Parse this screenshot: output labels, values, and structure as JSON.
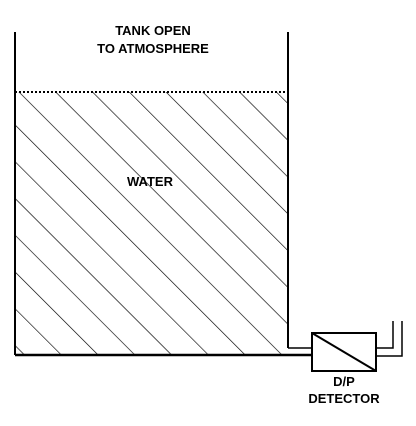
{
  "diagram": {
    "tank_label_line1": "TANK OPEN",
    "tank_label_line2": "TO ATMOSPHERE",
    "fluid_label": "WATER",
    "detector_label_line1": "D/P",
    "detector_label_line2": "DETECTOR"
  },
  "colors": {
    "line": "#000000",
    "background": "#ffffff"
  }
}
